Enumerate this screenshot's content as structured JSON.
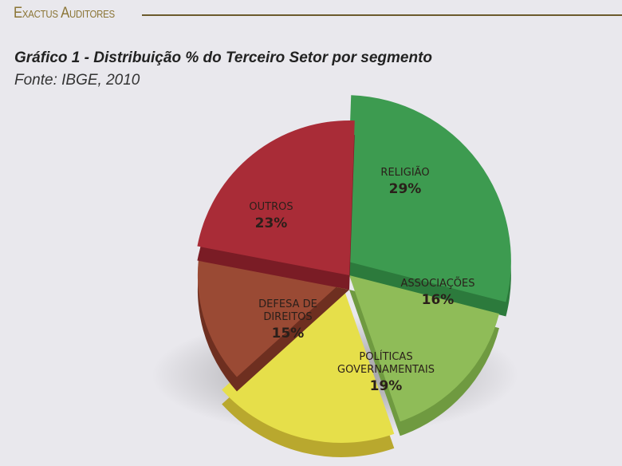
{
  "header": {
    "brand": "Exactus Auditores"
  },
  "chart_data": {
    "type": "pie",
    "title": "Gráfico 1 - Distribuição % do Terceiro Setor por segmento",
    "subtitle": "Fonte: IBGE, 2010",
    "slices": [
      {
        "label": [
          "RELIGIÃO"
        ],
        "value": 29,
        "display": "29%",
        "color": "#3d9b50",
        "color_dark": "#2c7a3c"
      },
      {
        "label": [
          "ASSOCIAÇÕES"
        ],
        "value": 16,
        "display": "16%",
        "color": "#8fbc58",
        "color_dark": "#6f9a40"
      },
      {
        "label": [
          "POLÍTICAS",
          "GOVERNAMENTAIS"
        ],
        "value": 19,
        "display": "19%",
        "color": "#e6df4a",
        "color_dark": "#b9a82e"
      },
      {
        "label": [
          "DEFESA DE",
          "DIREITOS"
        ],
        "value": 15,
        "display": "15%",
        "color": "#9a4a34",
        "color_dark": "#6e2f20"
      },
      {
        "label": [
          "OUTROS"
        ],
        "value": 23,
        "display": "23%",
        "color": "#a92c37",
        "color_dark": "#7a1c25"
      }
    ]
  }
}
